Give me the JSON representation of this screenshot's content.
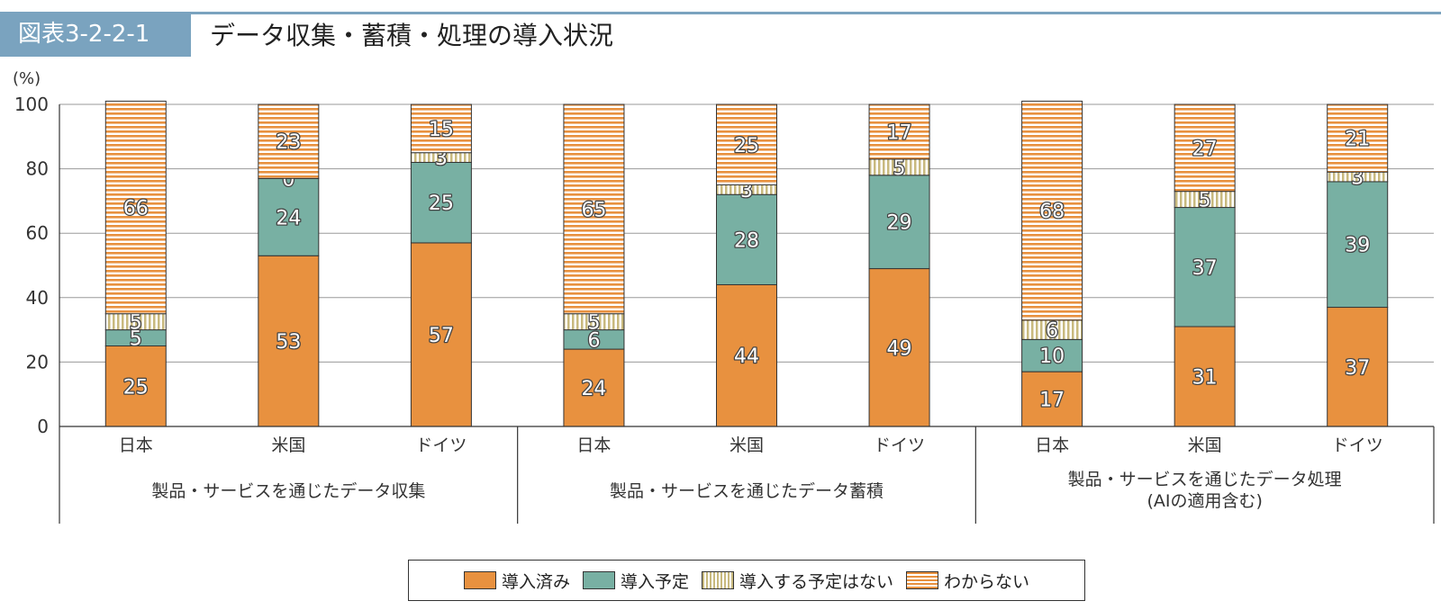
{
  "figure": {
    "badge": "図表3-2-2-1",
    "title": "データ収集・蓄積・処理の導入状況"
  },
  "chart_data": {
    "type": "bar",
    "stacked": true,
    "yunit": "(%)",
    "ylim": [
      0,
      100
    ],
    "yticks": [
      0,
      20,
      40,
      60,
      80,
      100
    ],
    "grid": true,
    "categories": [
      "日本",
      "米国",
      "ドイツ",
      "日本",
      "米国",
      "ドイツ",
      "日本",
      "米国",
      "ドイツ"
    ],
    "groups": [
      {
        "label": "製品・サービスを通じたデータ収集",
        "label2": ""
      },
      {
        "label": "製品・サービスを通じたデータ蓄積",
        "label2": ""
      },
      {
        "label": "製品・サービスを通じたデータ処理",
        "label2": "(AIの適用含む)"
      }
    ],
    "series": [
      {
        "name": "導入済み",
        "color": "#e8913f",
        "values": [
          25,
          53,
          57,
          24,
          44,
          49,
          17,
          31,
          37
        ]
      },
      {
        "name": "導入予定",
        "color": "#78b0a3",
        "values": [
          5,
          24,
          25,
          6,
          28,
          29,
          10,
          37,
          39
        ]
      },
      {
        "name": "導入する予定はない",
        "color": "#c8b97e",
        "values": [
          5,
          0,
          3,
          5,
          3,
          5,
          6,
          5,
          3
        ]
      },
      {
        "name": "わからない",
        "color": "#e8913f",
        "values": [
          66,
          23,
          15,
          65,
          25,
          17,
          68,
          27,
          21
        ]
      }
    ],
    "legend_position": "bottom"
  }
}
